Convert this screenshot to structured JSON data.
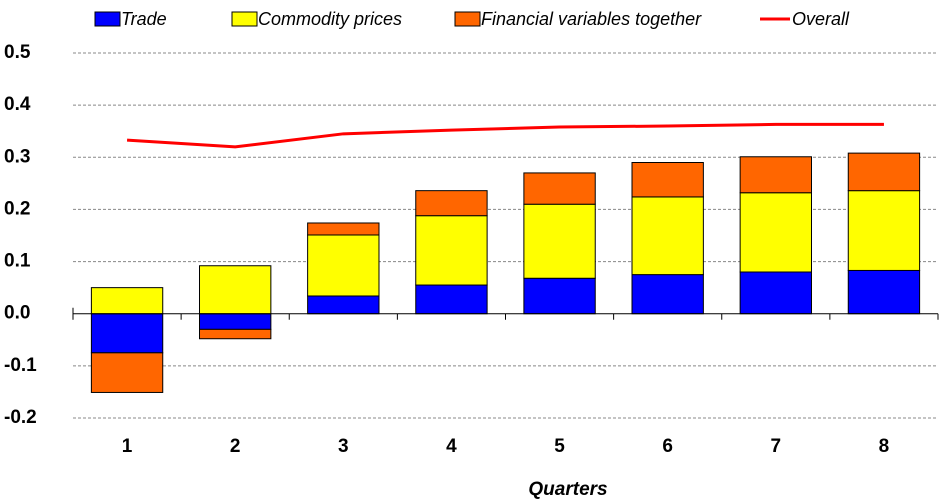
{
  "chart_data": {
    "type": "stacked_bar_line",
    "x_label": "Quarters",
    "categories": [
      "1",
      "2",
      "3",
      "4",
      "5",
      "6",
      "7",
      "8"
    ],
    "series": [
      {
        "name": "Trade",
        "color": "#0000ff",
        "values": [
          -0.075,
          -0.03,
          0.034,
          0.055,
          0.068,
          0.075,
          0.08,
          0.083
        ]
      },
      {
        "name": "Commodity prices",
        "color": "#ffff00",
        "values": [
          0.05,
          0.092,
          0.117,
          0.133,
          0.142,
          0.149,
          0.152,
          0.153
        ]
      },
      {
        "name": "Financial variables together",
        "color": "#ff6600",
        "values": [
          -0.076,
          -0.018,
          0.023,
          0.048,
          0.06,
          0.066,
          0.069,
          0.072
        ]
      },
      {
        "name": "Overall",
        "color": "#ff0000",
        "type": "line",
        "values": [
          0.333,
          0.32,
          0.345,
          0.352,
          0.358,
          0.36,
          0.363,
          0.363
        ]
      }
    ],
    "ylim": [
      -0.2,
      0.5
    ],
    "yticks": [
      {
        "value": -0.2,
        "label": "-0.2"
      },
      {
        "value": -0.1,
        "label": "-0.1"
      },
      {
        "value": 0,
        "label": "0.0"
      },
      {
        "value": 0.1,
        "label": "0.1"
      },
      {
        "value": 0.2,
        "label": "0.2"
      },
      {
        "value": 0.3,
        "label": "0.3"
      },
      {
        "value": 0.4,
        "label": "0.4"
      },
      {
        "value": 0.5,
        "label": "0.5"
      }
    ],
    "grid": true
  }
}
